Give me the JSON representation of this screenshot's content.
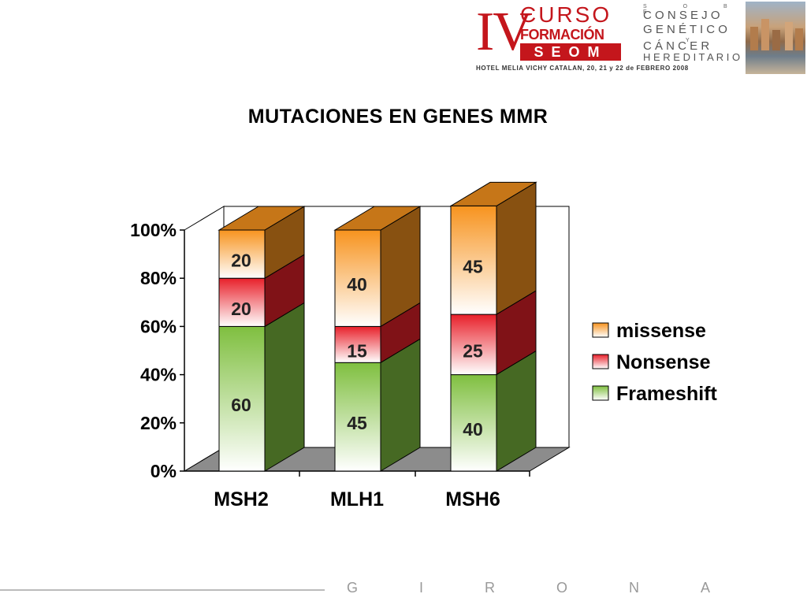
{
  "header": {
    "roman": "IV",
    "curso": "CURSO",
    "formacion": "FORMACIÓN",
    "seom": "SEOM",
    "sobre": "S O B R E",
    "consejo": "C O N S E J O",
    "genetico": "G E N É T I C O",
    "y": "Y",
    "cancer": "C Á N C E R",
    "hereditario": "H E R E D I T A R I O",
    "hotel": "HOTEL MELIA VICHY CATALAN, 20, 21 y 22 de FEBRERO 2008"
  },
  "footer": {
    "girona": "GIRONA"
  },
  "chart_data": {
    "type": "bar",
    "stacked": true,
    "percent": true,
    "title": "MUTACIONES EN GENES MMR",
    "categories": [
      "MSH2",
      "MLH1",
      "MSH6"
    ],
    "series": [
      {
        "name": "Frameshift",
        "values": [
          60,
          45,
          40
        ],
        "color": "#7fbf3f"
      },
      {
        "name": "Nonsense",
        "values": [
          20,
          15,
          25
        ],
        "color": "#e8202a"
      },
      {
        "name": "missense",
        "values": [
          20,
          40,
          45
        ],
        "color": "#f7931e"
      }
    ],
    "y_ticks": [
      "0%",
      "20%",
      "40%",
      "60%",
      "80%",
      "100%"
    ],
    "ylim": [
      0,
      100
    ],
    "legend": "right",
    "legend_order": [
      "missense",
      "Nonsense",
      "Frameshift"
    ]
  }
}
